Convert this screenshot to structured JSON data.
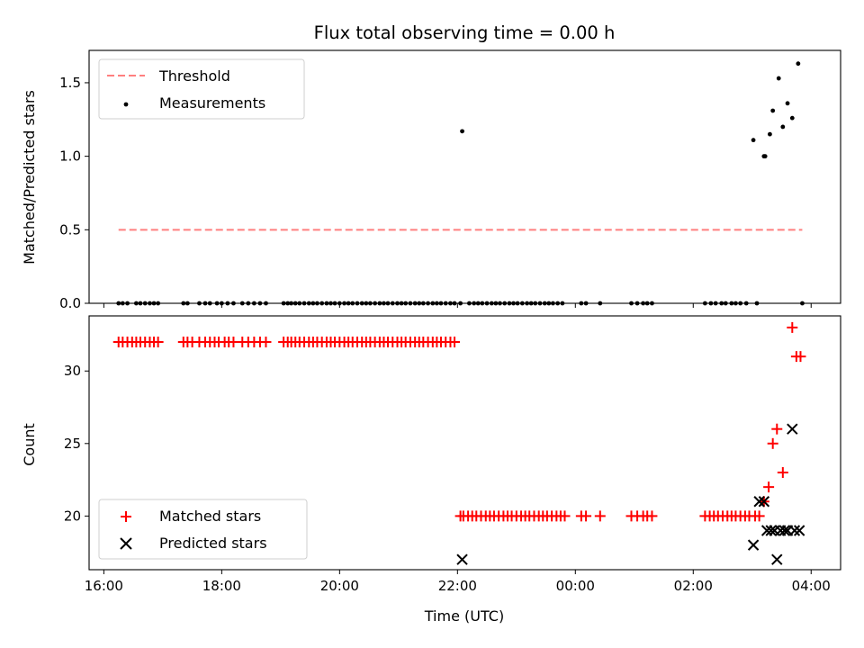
{
  "chart_data": [
    {
      "type": "scatter",
      "title": "Flux total observing time = 0.00 h",
      "xlabel": "",
      "ylabel": "Matched/Predicted stars",
      "xlim": [
        15.75,
        28.5
      ],
      "ylim": [
        0.0,
        1.72
      ],
      "yticks": [
        0.0,
        0.5,
        1.0,
        1.5
      ],
      "ytick_labels": [
        "0.0",
        "0.5",
        "1.0",
        "1.5"
      ],
      "legend_position": "upper-left",
      "threshold": {
        "name": "Threshold",
        "color": "#ff7f7f",
        "style": "dashed",
        "y": 0.5,
        "x_range": [
          16.25,
          27.85
        ]
      },
      "series": [
        {
          "name": "Measurements",
          "marker": "dot",
          "color": "#000000",
          "x": [
            16.25,
            16.32,
            16.4,
            16.55,
            16.62,
            16.7,
            16.78,
            16.85,
            16.92,
            17.35,
            17.42,
            17.62,
            17.72,
            17.8,
            17.92,
            18.0,
            18.1,
            18.2,
            18.35,
            18.45,
            18.55,
            18.65,
            18.75,
            19.05,
            19.12,
            19.18,
            19.25,
            19.32,
            19.4,
            19.48,
            19.55,
            19.62,
            19.7,
            19.78,
            19.85,
            19.92,
            20.0,
            20.08,
            20.15,
            20.22,
            20.3,
            20.38,
            20.45,
            20.52,
            20.6,
            20.68,
            20.75,
            20.82,
            20.9,
            20.98,
            21.05,
            21.12,
            21.2,
            21.28,
            21.35,
            21.42,
            21.5,
            21.58,
            21.65,
            21.72,
            21.8,
            21.88,
            21.95,
            22.05,
            22.2,
            22.28,
            22.35,
            22.42,
            22.5,
            22.58,
            22.65,
            22.72,
            22.8,
            22.88,
            22.95,
            23.02,
            23.1,
            23.18,
            23.25,
            23.32,
            23.4,
            23.48,
            23.55,
            23.62,
            23.7,
            23.78,
            24.1,
            24.18,
            24.42,
            24.95,
            25.05,
            25.15,
            25.22,
            25.3,
            26.2,
            26.3,
            26.38,
            26.48,
            26.55,
            26.65,
            26.72,
            26.8,
            26.9,
            27.08,
            27.85,
            22.08,
            27.02,
            27.2,
            27.22,
            27.3,
            27.35,
            27.45,
            27.52,
            27.6,
            27.68,
            27.78
          ],
          "y": [
            0,
            0,
            0,
            0,
            0,
            0,
            0,
            0,
            0,
            0,
            0,
            0,
            0,
            0,
            0,
            0,
            0,
            0,
            0,
            0,
            0,
            0,
            0,
            0,
            0,
            0,
            0,
            0,
            0,
            0,
            0,
            0,
            0,
            0,
            0,
            0,
            0,
            0,
            0,
            0,
            0,
            0,
            0,
            0,
            0,
            0,
            0,
            0,
            0,
            0,
            0,
            0,
            0,
            0,
            0,
            0,
            0,
            0,
            0,
            0,
            0,
            0,
            0,
            0,
            0,
            0,
            0,
            0,
            0,
            0,
            0,
            0,
            0,
            0,
            0,
            0,
            0,
            0,
            0,
            0,
            0,
            0,
            0,
            0,
            0,
            0,
            0,
            0,
            0,
            0,
            0,
            0,
            0,
            0,
            0,
            0,
            0,
            0,
            0,
            0,
            0,
            0,
            0,
            0,
            0,
            1.17,
            1.11,
            1.0,
            1.0,
            1.15,
            1.31,
            1.53,
            1.2,
            1.36,
            1.26,
            1.63
          ]
        }
      ]
    },
    {
      "type": "scatter",
      "title": "",
      "xlabel": "Time (UTC)",
      "ylabel": "Count",
      "xlim": [
        15.75,
        28.5
      ],
      "ylim": [
        16.3,
        33.8
      ],
      "yticks": [
        20,
        25,
        30
      ],
      "ytick_labels": [
        "20",
        "25",
        "30"
      ],
      "xticks": [
        16,
        18,
        20,
        22,
        24,
        26,
        28
      ],
      "xtick_labels": [
        "16:00",
        "18:00",
        "20:00",
        "22:00",
        "00:00",
        "02:00",
        "04:00"
      ],
      "legend_position": "lower-left",
      "series": [
        {
          "name": "Matched stars",
          "marker": "plus",
          "color": "#ff0000",
          "x": [
            16.25,
            16.32,
            16.4,
            16.48,
            16.55,
            16.62,
            16.7,
            16.78,
            16.85,
            16.92,
            17.35,
            17.42,
            17.5,
            17.62,
            17.72,
            17.8,
            17.88,
            17.95,
            18.05,
            18.12,
            18.2,
            18.35,
            18.45,
            18.55,
            18.65,
            18.75,
            19.05,
            19.12,
            19.18,
            19.25,
            19.32,
            19.4,
            19.48,
            19.55,
            19.62,
            19.7,
            19.78,
            19.85,
            19.92,
            20.0,
            20.08,
            20.15,
            20.22,
            20.3,
            20.38,
            20.45,
            20.52,
            20.6,
            20.68,
            20.75,
            20.82,
            20.9,
            20.98,
            21.05,
            21.12,
            21.2,
            21.28,
            21.35,
            21.42,
            21.5,
            21.58,
            21.65,
            21.72,
            21.8,
            21.88,
            21.95,
            22.05,
            22.1,
            22.18,
            22.25,
            22.32,
            22.4,
            22.48,
            22.55,
            22.62,
            22.7,
            22.78,
            22.85,
            22.92,
            23.0,
            23.08,
            23.15,
            23.22,
            23.3,
            23.38,
            23.45,
            23.52,
            23.6,
            23.68,
            23.75,
            23.82,
            24.1,
            24.18,
            24.42,
            24.95,
            25.05,
            25.15,
            25.22,
            25.3,
            26.2,
            26.28,
            26.35,
            26.42,
            26.5,
            26.58,
            26.65,
            26.72,
            26.8,
            26.88,
            26.95,
            27.05,
            27.12,
            27.2,
            27.28,
            27.35,
            27.42,
            27.52,
            27.68,
            27.75,
            27.82
          ],
          "y": [
            32,
            32,
            32,
            32,
            32,
            32,
            32,
            32,
            32,
            32,
            32,
            32,
            32,
            32,
            32,
            32,
            32,
            32,
            32,
            32,
            32,
            32,
            32,
            32,
            32,
            32,
            32,
            32,
            32,
            32,
            32,
            32,
            32,
            32,
            32,
            32,
            32,
            32,
            32,
            32,
            32,
            32,
            32,
            32,
            32,
            32,
            32,
            32,
            32,
            32,
            32,
            32,
            32,
            32,
            32,
            32,
            32,
            32,
            32,
            32,
            32,
            32,
            32,
            32,
            32,
            32,
            20,
            20,
            20,
            20,
            20,
            20,
            20,
            20,
            20,
            20,
            20,
            20,
            20,
            20,
            20,
            20,
            20,
            20,
            20,
            20,
            20,
            20,
            20,
            20,
            20,
            20,
            20,
            20,
            20,
            20,
            20,
            20,
            20,
            20,
            20,
            20,
            20,
            20,
            20,
            20,
            20,
            20,
            20,
            20,
            20,
            20,
            21,
            22,
            25,
            26,
            23,
            33,
            31,
            31
          ]
        },
        {
          "name": "Predicted stars",
          "marker": "x",
          "color": "#000000",
          "x": [
            22.08,
            27.02,
            27.12,
            27.2,
            27.25,
            27.32,
            27.38,
            27.42,
            27.48,
            27.55,
            27.6,
            27.68,
            27.72,
            27.8
          ],
          "y": [
            17,
            18,
            21,
            21,
            19,
            19,
            19,
            17,
            19,
            19,
            19,
            26,
            19,
            19
          ]
        }
      ]
    }
  ]
}
